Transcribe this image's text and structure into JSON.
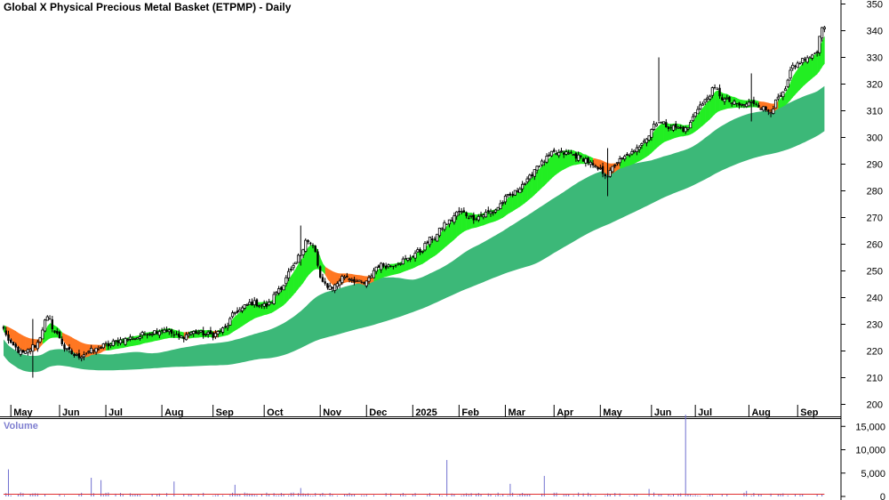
{
  "chart_data": {
    "type": "candlestick",
    "title": "Global X Physical Precious Metal Basket (ETPMP) - Daily",
    "price_axis": {
      "ylim": [
        200,
        350
      ],
      "ticks": [
        200,
        210,
        220,
        230,
        240,
        250,
        260,
        270,
        280,
        290,
        300,
        310,
        320,
        330,
        340,
        350
      ],
      "side": "right"
    },
    "months": [
      {
        "label": "May",
        "idx": 3
      },
      {
        "label": "Jun",
        "idx": 23
      },
      {
        "label": "Jul",
        "idx": 42
      },
      {
        "label": "Aug",
        "idx": 65
      },
      {
        "label": "Sep",
        "idx": 86
      },
      {
        "label": "Oct",
        "idx": 107
      },
      {
        "label": "Nov",
        "idx": 130
      },
      {
        "label": "Dec",
        "idx": 149
      },
      {
        "label": "2025",
        "idx": 168
      },
      {
        "label": "Feb",
        "idx": 187
      },
      {
        "label": "Mar",
        "idx": 206
      },
      {
        "label": "Apr",
        "idx": 226
      },
      {
        "label": "May",
        "idx": 245
      },
      {
        "label": "Jun",
        "idx": 266
      },
      {
        "label": "Jul",
        "idx": 284
      },
      {
        "label": "Aug",
        "idx": 306
      },
      {
        "label": "Sep",
        "idx": 326
      }
    ],
    "price_anchors": [
      [
        0,
        228
      ],
      [
        3,
        222
      ],
      [
        8,
        219
      ],
      [
        13,
        222
      ],
      [
        18,
        232
      ],
      [
        22,
        226
      ],
      [
        26,
        220
      ],
      [
        30,
        218
      ],
      [
        36,
        220
      ],
      [
        42,
        222
      ],
      [
        48,
        224
      ],
      [
        54,
        225
      ],
      [
        60,
        227
      ],
      [
        66,
        228
      ],
      [
        72,
        225
      ],
      [
        78,
        227
      ],
      [
        86,
        226
      ],
      [
        90,
        228
      ],
      [
        96,
        235
      ],
      [
        102,
        238
      ],
      [
        108,
        237
      ],
      [
        114,
        244
      ],
      [
        118,
        250
      ],
      [
        122,
        256
      ],
      [
        124,
        262
      ],
      [
        127,
        259
      ],
      [
        131,
        245
      ],
      [
        135,
        244
      ],
      [
        140,
        248
      ],
      [
        148,
        245
      ],
      [
        154,
        252
      ],
      [
        158,
        252
      ],
      [
        165,
        254
      ],
      [
        170,
        257
      ],
      [
        176,
        262
      ],
      [
        182,
        268
      ],
      [
        187,
        272
      ],
      [
        193,
        270
      ],
      [
        200,
        272
      ],
      [
        208,
        278
      ],
      [
        214,
        283
      ],
      [
        220,
        290
      ],
      [
        226,
        294
      ],
      [
        232,
        294
      ],
      [
        238,
        292
      ],
      [
        244,
        288
      ],
      [
        248,
        286
      ],
      [
        252,
        291
      ],
      [
        258,
        294
      ],
      [
        264,
        300
      ],
      [
        268,
        306
      ],
      [
        274,
        304
      ],
      [
        280,
        303
      ],
      [
        286,
        312
      ],
      [
        292,
        318
      ],
      [
        296,
        314
      ],
      [
        302,
        312
      ],
      [
        308,
        313
      ],
      [
        314,
        310
      ],
      [
        320,
        316
      ],
      [
        324,
        326
      ],
      [
        328,
        329
      ],
      [
        332,
        330
      ],
      [
        334,
        333
      ],
      [
        336,
        342
      ]
    ],
    "spikes": [
      {
        "idx": 269,
        "high": 330,
        "low": 306
      },
      {
        "idx": 122,
        "high": 267,
        "low": 252
      },
      {
        "idx": 248,
        "high": 296,
        "low": 278
      },
      {
        "idx": 307,
        "high": 324,
        "low": 306
      },
      {
        "idx": 12,
        "high": 232,
        "low": 210
      }
    ],
    "volume_axis": {
      "ylim": [
        0,
        18000
      ],
      "ticks": [
        0,
        5000,
        10000,
        15000
      ],
      "tick_labels": [
        "0",
        "5,000",
        "10,000",
        "15,000"
      ],
      "side": "right"
    },
    "volume_title": "Volume",
    "volume_spikes": [
      {
        "idx": 2,
        "value": 5800
      },
      {
        "idx": 36,
        "value": 4000
      },
      {
        "idx": 40,
        "value": 3500
      },
      {
        "idx": 70,
        "value": 3200
      },
      {
        "idx": 95,
        "value": 2500
      },
      {
        "idx": 122,
        "value": 1800
      },
      {
        "idx": 182,
        "value": 7800
      },
      {
        "idx": 208,
        "value": 2700
      },
      {
        "idx": 222,
        "value": 4400
      },
      {
        "idx": 265,
        "value": 1600
      },
      {
        "idx": 280,
        "value": 17500
      },
      {
        "idx": 305,
        "value": 1200
      }
    ],
    "series": [
      {
        "name": "short-term moving average band",
        "color_up": "#22ee22",
        "color_down": "#ff7722"
      },
      {
        "name": "long-term moving average band",
        "color": "#3cb878"
      }
    ],
    "grid": false,
    "legend": "none"
  }
}
